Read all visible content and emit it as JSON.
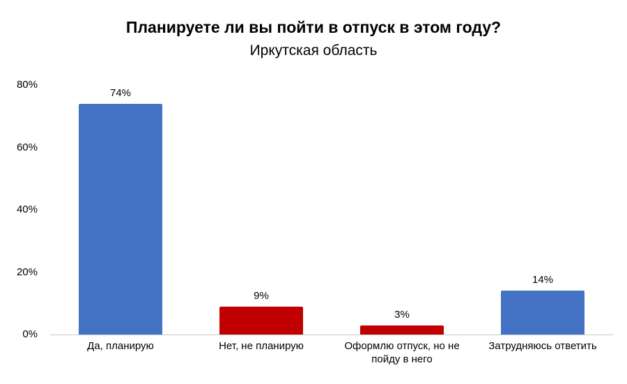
{
  "header": {
    "title": "Планируете ли вы пойти в отпуск в этом году?",
    "subtitle": "Иркутская область"
  },
  "chart_data": {
    "type": "bar",
    "title": "Планируете ли вы пойти в отпуск в этом году?",
    "subtitle": "Иркутская область",
    "categories": [
      "Да, планирую",
      "Нет, не планирую",
      "Оформлю отпуск, но не пойду в него",
      "Затрудняюсь ответить"
    ],
    "values": [
      74,
      9,
      3,
      14
    ],
    "value_labels": [
      "74%",
      "9%",
      "3%",
      "14%"
    ],
    "bar_colors": [
      "#4472C4",
      "#C00000",
      "#C00000",
      "#4472C4"
    ],
    "xlabel": "",
    "ylabel": "",
    "ylim": [
      0,
      80
    ],
    "yticks": [
      0,
      20,
      40,
      60,
      80
    ],
    "ytick_labels": [
      "0%",
      "20%",
      "40%",
      "60%",
      "80%"
    ],
    "grid": false,
    "legend": false,
    "colors": {
      "blue": "#4472C4",
      "red": "#C00000",
      "axis_line": "#c9c9c9",
      "text": "#000000",
      "background": "#ffffff"
    }
  }
}
